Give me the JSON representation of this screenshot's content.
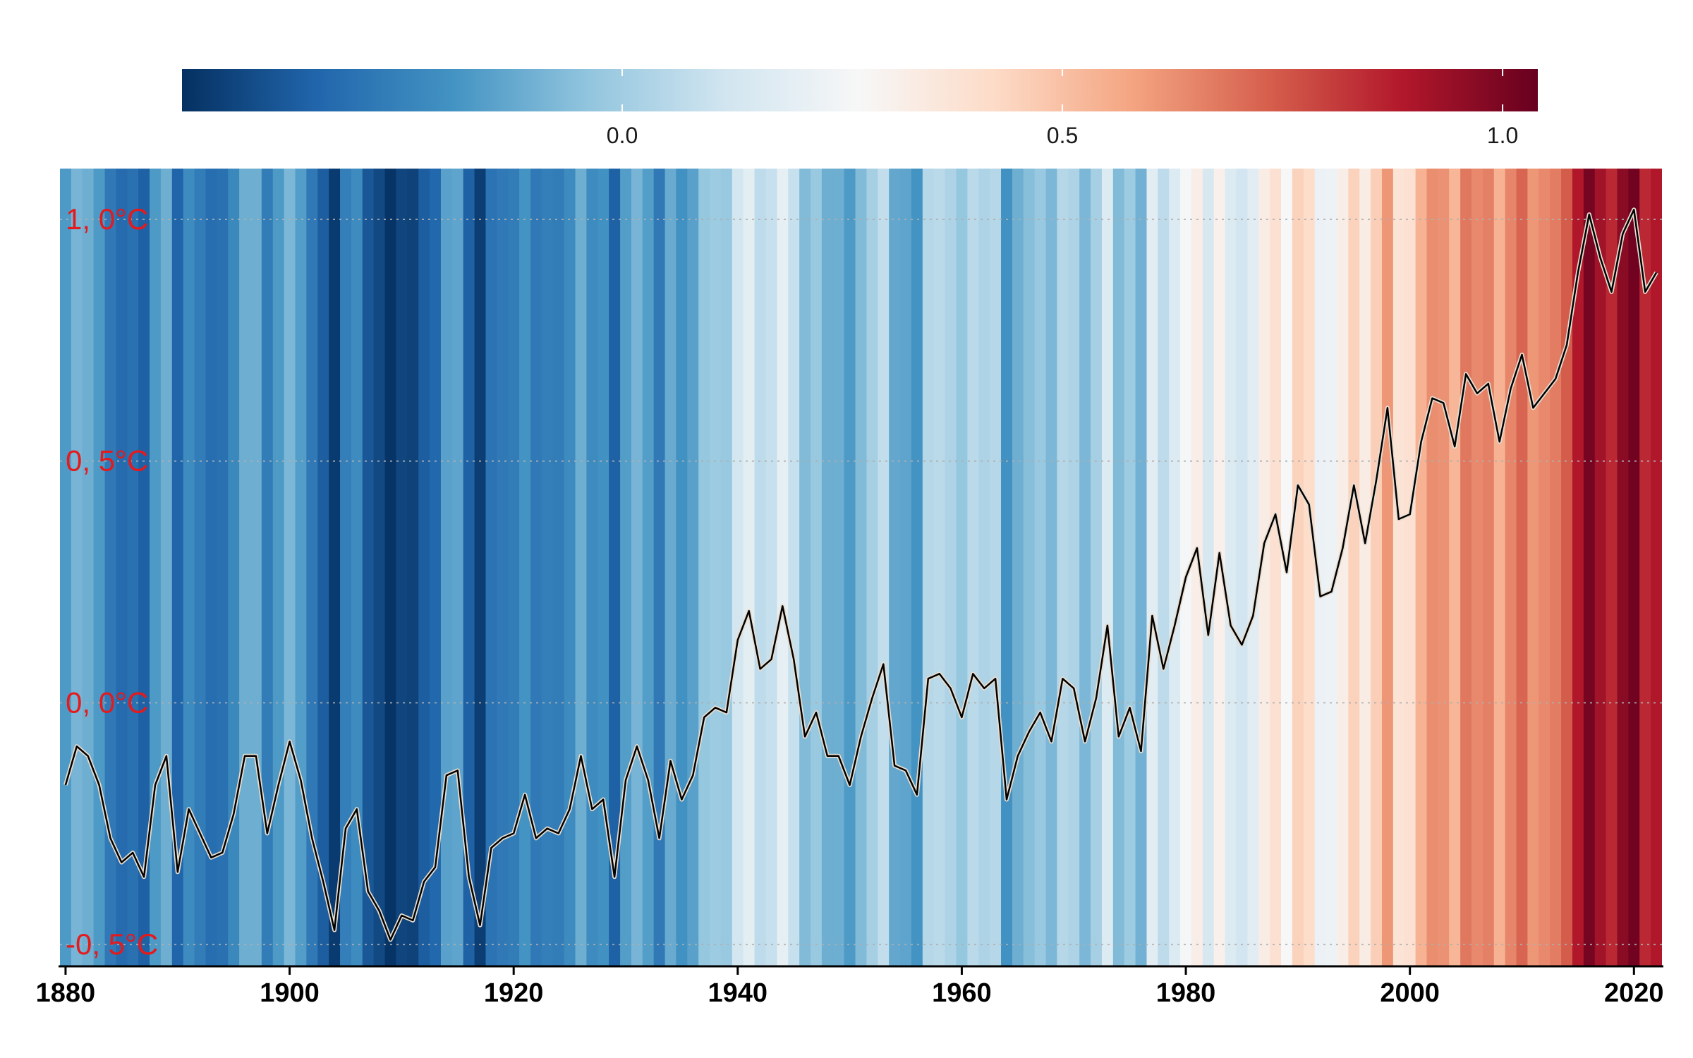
{
  "chart_data": {
    "type": "warming-stripes-line",
    "title": "",
    "xlabel": "",
    "ylabel": "",
    "x_tick_labels": [
      "1880",
      "1900",
      "1920",
      "1940",
      "1960",
      "1980",
      "2000",
      "2020"
    ],
    "x_tick_values": [
      1880,
      1900,
      1920,
      1940,
      1960,
      1980,
      2000,
      2020
    ],
    "xlim": [
      1879.5,
      2022.5
    ],
    "y_tick_labels": [
      "-0, 5°C",
      "0, 0°C",
      "0, 5°C",
      "1, 0°C"
    ],
    "y_tick_values": [
      -0.5,
      0.0,
      0.5,
      1.0
    ],
    "ylim": [
      -0.545,
      1.105
    ],
    "grid": "horizontal dotted lines at y ticks",
    "legend": {
      "type": "colorbar",
      "placement": "top",
      "tick_labels": [
        "0.0",
        "0.5",
        "1.0"
      ],
      "tick_values": [
        0.0,
        0.5,
        1.0
      ],
      "range": [
        -0.5,
        1.04
      ],
      "palette": [
        "#053061",
        "#2166ac",
        "#4393c3",
        "#92c5de",
        "#d1e5f0",
        "#f7f7f7",
        "#fddbc7",
        "#f4a582",
        "#d6604d",
        "#b2182b",
        "#67001f"
      ]
    },
    "colors": {
      "y_tick_labels": "#e41a1c",
      "line": "#000000",
      "line_halo": "#e8ddd0",
      "grid": "#b0b0b0",
      "x_tick_labels": "#000000"
    },
    "series": [
      {
        "x": [
          1880,
          1881,
          1882,
          1883,
          1884,
          1885,
          1886,
          1887,
          1888,
          1889,
          1890,
          1891,
          1892,
          1893,
          1894,
          1895,
          1896,
          1897,
          1898,
          1899,
          1900,
          1901,
          1902,
          1903,
          1904,
          1905,
          1906,
          1907,
          1908,
          1909,
          1910,
          1911,
          1912,
          1913,
          1914,
          1915,
          1916,
          1917,
          1918,
          1919,
          1920,
          1921,
          1922,
          1923,
          1924,
          1925,
          1926,
          1927,
          1928,
          1929,
          1930,
          1931,
          1932,
          1933,
          1934,
          1935,
          1936,
          1937,
          1938,
          1939,
          1940,
          1941,
          1942,
          1943,
          1944,
          1945,
          1946,
          1947,
          1948,
          1949,
          1950,
          1951,
          1952,
          1953,
          1954,
          1955,
          1956,
          1957,
          1958,
          1959,
          1960,
          1961,
          1962,
          1963,
          1964,
          1965,
          1966,
          1967,
          1968,
          1969,
          1970,
          1971,
          1972,
          1973,
          1974,
          1975,
          1976,
          1977,
          1978,
          1979,
          1980,
          1981,
          1982,
          1983,
          1984,
          1985,
          1986,
          1987,
          1988,
          1989,
          1990,
          1991,
          1992,
          1993,
          1994,
          1995,
          1996,
          1997,
          1998,
          1999,
          2000,
          2001,
          2002,
          2003,
          2004,
          2005,
          2006,
          2007,
          2008,
          2009,
          2010,
          2011,
          2012,
          2013,
          2014,
          2015,
          2016,
          2017,
          2018,
          2019,
          2020,
          2021,
          2022
        ],
        "y": [
          -0.17,
          -0.09,
          -0.11,
          -0.17,
          -0.28,
          -0.33,
          -0.31,
          -0.36,
          -0.17,
          -0.11,
          -0.35,
          -0.22,
          -0.27,
          -0.32,
          -0.31,
          -0.23,
          -0.11,
          -0.11,
          -0.27,
          -0.17,
          -0.08,
          -0.16,
          -0.28,
          -0.37,
          -0.47,
          -0.26,
          -0.22,
          -0.39,
          -0.43,
          -0.49,
          -0.44,
          -0.45,
          -0.37,
          -0.34,
          -0.15,
          -0.14,
          -0.36,
          -0.46,
          -0.3,
          -0.28,
          -0.27,
          -0.19,
          -0.28,
          -0.26,
          -0.27,
          -0.22,
          -0.11,
          -0.22,
          -0.2,
          -0.36,
          -0.16,
          -0.09,
          -0.16,
          -0.28,
          -0.12,
          -0.2,
          -0.15,
          -0.03,
          -0.01,
          -0.02,
          0.13,
          0.19,
          0.07,
          0.09,
          0.2,
          0.09,
          -0.07,
          -0.02,
          -0.11,
          -0.11,
          -0.17,
          -0.07,
          0.01,
          0.08,
          -0.13,
          -0.14,
          -0.19,
          0.05,
          0.06,
          0.03,
          -0.03,
          0.06,
          0.03,
          0.05,
          -0.2,
          -0.11,
          -0.06,
          -0.02,
          -0.08,
          0.05,
          0.03,
          -0.08,
          0.01,
          0.16,
          -0.07,
          -0.01,
          -0.1,
          0.18,
          0.07,
          0.16,
          0.26,
          0.32,
          0.14,
          0.31,
          0.16,
          0.12,
          0.18,
          0.33,
          0.39,
          0.27,
          0.45,
          0.41,
          0.22,
          0.23,
          0.32,
          0.45,
          0.33,
          0.46,
          0.61,
          0.38,
          0.39,
          0.54,
          0.63,
          0.62,
          0.53,
          0.68,
          0.64,
          0.66,
          0.54,
          0.65,
          0.72,
          0.61,
          0.64,
          0.67,
          0.74,
          0.89,
          1.01,
          0.92,
          0.85,
          0.97,
          1.02,
          0.85,
          0.89
        ]
      }
    ]
  }
}
